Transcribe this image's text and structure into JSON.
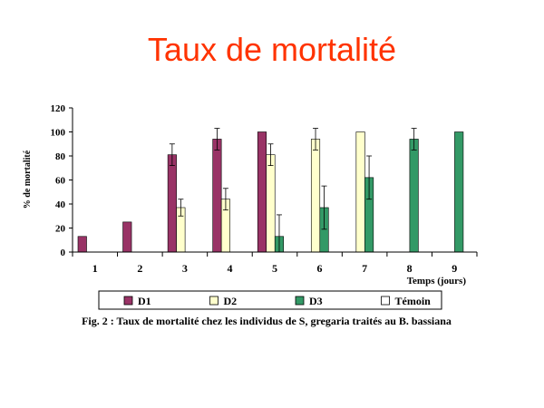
{
  "slide": {
    "title": "Taux de mortalité"
  },
  "caption": "Fig. 2 : Taux de mortalité chez les individus de S, gregaria traités au B. bassiana",
  "chart_data": {
    "type": "bar",
    "categories": [
      "1",
      "2",
      "3",
      "4",
      "5",
      "6",
      "7",
      "8",
      "9"
    ],
    "series": [
      {
        "name": "D1",
        "color": "#993366",
        "values": [
          13,
          25,
          81,
          94,
          100,
          null,
          null,
          null,
          null
        ],
        "errors": [
          null,
          null,
          9,
          9,
          null,
          null,
          null,
          null,
          null
        ]
      },
      {
        "name": "D2",
        "color": "#ffffcc",
        "values": [
          null,
          null,
          37,
          44,
          81,
          94,
          100,
          null,
          null
        ],
        "errors": [
          null,
          null,
          7,
          9,
          9,
          9,
          null,
          null,
          null
        ]
      },
      {
        "name": "D3",
        "color": "#339966",
        "values": [
          null,
          null,
          null,
          null,
          13,
          37,
          62,
          94,
          100
        ],
        "errors": [
          null,
          null,
          null,
          null,
          18,
          18,
          18,
          9,
          null
        ]
      },
      {
        "name": "Témoin",
        "color": "#ffffff",
        "values": [
          null,
          null,
          null,
          null,
          null,
          null,
          null,
          null,
          null
        ],
        "errors": [
          null,
          null,
          null,
          null,
          null,
          null,
          null,
          null,
          null
        ]
      }
    ],
    "title": "",
    "xlabel": "Temps (jours)",
    "ylabel": "% de mortalité",
    "ylim": [
      0,
      120
    ],
    "yticks": [
      0,
      20,
      40,
      60,
      80,
      100,
      120
    ],
    "grid": false,
    "legend": "bottom"
  }
}
